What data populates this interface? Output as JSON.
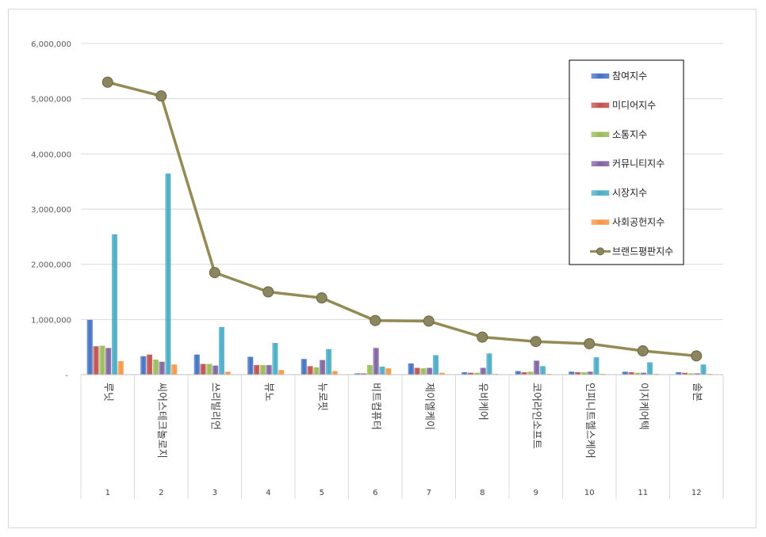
{
  "chart_data": {
    "type": "bar",
    "categories": [
      "루닛",
      "씨어스테크놀로지",
      "쓰리빌리언",
      "뷰노",
      "뉴로핏",
      "비트컴퓨터",
      "제이엘케이",
      "유비케어",
      "코어라인소프트",
      "인피니트헬스케어",
      "이지케어텍",
      "솔본"
    ],
    "ranks": [
      "1",
      "2",
      "3",
      "4",
      "5",
      "6",
      "7",
      "8",
      "9",
      "10",
      "11",
      "12"
    ],
    "series": [
      {
        "name": "참여지수",
        "color": "#4472C4",
        "values": [
          990000,
          330000,
          360000,
          320000,
          280000,
          20000,
          200000,
          40000,
          60000,
          50000,
          50000,
          40000
        ]
      },
      {
        "name": "미디어지수",
        "color": "#C0504D",
        "values": [
          510000,
          360000,
          190000,
          170000,
          150000,
          20000,
          120000,
          30000,
          40000,
          40000,
          40000,
          30000
        ]
      },
      {
        "name": "소통지수",
        "color": "#9BBB59",
        "values": [
          520000,
          270000,
          190000,
          170000,
          130000,
          170000,
          110000,
          30000,
          50000,
          40000,
          30000,
          20000
        ]
      },
      {
        "name": "커뮤니티지수",
        "color": "#8064A2",
        "values": [
          480000,
          230000,
          160000,
          170000,
          260000,
          480000,
          120000,
          120000,
          250000,
          50000,
          30000,
          20000
        ]
      },
      {
        "name": "시장지수",
        "color": "#4BACC6",
        "values": [
          2540000,
          3640000,
          860000,
          570000,
          460000,
          140000,
          350000,
          380000,
          150000,
          310000,
          220000,
          180000
        ]
      },
      {
        "name": "사회공헌지수",
        "color": "#F79646",
        "values": [
          240000,
          180000,
          50000,
          80000,
          60000,
          110000,
          30000,
          10000,
          10000,
          10000,
          10000,
          10000
        ]
      }
    ],
    "line_series": {
      "name": "브랜드평판지수",
      "color": "#948A54",
      "values": [
        5300000,
        5050000,
        1850000,
        1500000,
        1390000,
        980000,
        970000,
        680000,
        600000,
        560000,
        430000,
        340000
      ]
    },
    "y_ticks": [
      "-",
      "1,000,000",
      "2,000,000",
      "3,000,000",
      "4,000,000",
      "5,000,000",
      "6,000,000"
    ],
    "ylim": [
      0,
      6000000
    ],
    "grid": true,
    "legend_position": "top-right"
  }
}
